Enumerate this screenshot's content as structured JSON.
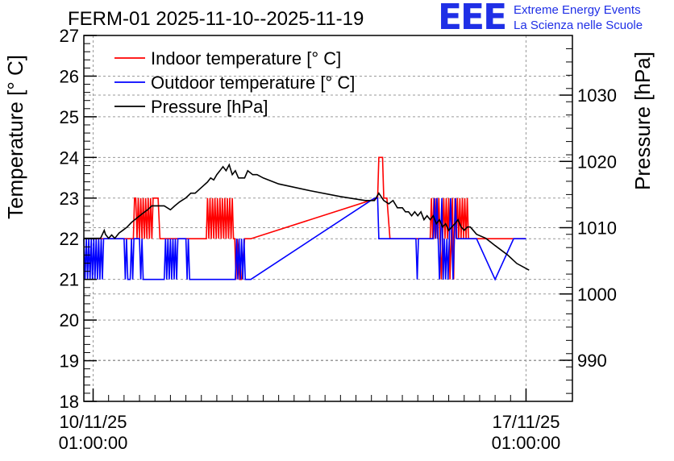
{
  "title": "FERM-01 2025-11-10--2025-11-19",
  "logo": {
    "mark": "EEE",
    "line1": "Extreme Energy Events",
    "line2": "La Scienza nelle Scuole",
    "color": "#1f2fe6"
  },
  "chart_data": {
    "type": "line",
    "title": "FERM-01 2025-11-10--2025-11-19",
    "xlabel": "",
    "ylabel": "Temperature [° C]",
    "y2label": "Pressure [hPa]",
    "xlim": [
      -0.15,
      7.75
    ],
    "ylim": [
      18,
      27
    ],
    "y2lim": [
      983.8,
      1039.0
    ],
    "y_ticks": [
      18,
      19,
      20,
      21,
      22,
      23,
      24,
      25,
      26,
      27
    ],
    "y2_ticks": [
      990,
      1000,
      1010,
      1020,
      1030
    ],
    "x_ticks": [
      {
        "value": 0,
        "line1": "10/11/25",
        "line2": "01:00:00"
      },
      {
        "value": 7,
        "line1": "17/11/25",
        "line2": "01:00:00"
      }
    ],
    "x_unit": "days since 10/11/25 01:00:00",
    "grid": true,
    "legend_position": "top-left",
    "series": [
      {
        "name": "Indoor temperature [° C]",
        "axis": "left",
        "color": "#ff0000",
        "x": [
          -0.15,
          0.65,
          0.67,
          0.69,
          0.71,
          0.73,
          0.75,
          0.77,
          0.79,
          0.81,
          0.83,
          0.85,
          0.87,
          0.89,
          0.91,
          0.93,
          0.95,
          0.97,
          0.99,
          1.02,
          1.05,
          1.08,
          1.15,
          1.5,
          1.83,
          1.85,
          1.87,
          1.89,
          1.91,
          1.93,
          1.95,
          1.97,
          1.99,
          2.01,
          2.03,
          2.05,
          2.07,
          2.09,
          2.11,
          2.13,
          2.15,
          2.17,
          2.19,
          2.21,
          2.23,
          2.25,
          2.27,
          2.29,
          2.31,
          2.33,
          2.37,
          2.4,
          2.45,
          2.55,
          4.6,
          4.62,
          4.64,
          4.66,
          4.68,
          4.7,
          4.75,
          4.8,
          5.45,
          5.47,
          5.49,
          5.51,
          5.53,
          5.55,
          5.57,
          5.59,
          5.61,
          5.63,
          5.65,
          5.67,
          5.69,
          5.71,
          5.73,
          5.75,
          5.77,
          5.79,
          5.81,
          5.83,
          5.85,
          5.87,
          5.89,
          5.91,
          5.93,
          5.95,
          5.97,
          5.99,
          6.01,
          6.03,
          6.05,
          6.07,
          7.0
        ],
        "y": [
          22,
          22,
          23,
          23,
          22,
          23,
          22,
          23,
          22,
          23,
          22,
          23,
          22,
          23,
          22,
          23,
          22,
          23,
          23,
          23,
          23,
          22,
          22,
          22,
          22,
          23,
          22,
          23,
          22,
          23,
          22,
          23,
          22,
          23,
          22,
          23,
          22,
          23,
          22,
          23,
          22,
          23,
          22,
          23,
          22,
          23,
          22,
          22,
          21,
          22,
          21,
          21,
          22,
          22,
          23,
          24,
          24,
          24,
          24,
          23,
          23,
          22,
          22,
          23,
          22,
          23,
          22,
          23,
          22,
          23,
          22,
          21,
          22,
          23,
          22,
          23,
          22,
          23,
          21,
          22,
          23,
          21,
          23,
          22,
          23,
          22,
          23,
          22,
          23,
          22,
          23,
          22,
          23,
          22,
          22
        ]
      },
      {
        "name": "Outdoor temperature [° C]",
        "axis": "left",
        "color": "#0000ff",
        "x": [
          -0.15,
          -0.13,
          -0.11,
          -0.09,
          -0.07,
          -0.05,
          -0.03,
          -0.01,
          0.01,
          0.03,
          0.05,
          0.07,
          0.09,
          0.11,
          0.13,
          0.15,
          0.17,
          0.19,
          0.21,
          0.4,
          0.5,
          0.52,
          0.54,
          0.56,
          0.6,
          0.62,
          0.64,
          0.66,
          0.68,
          0.75,
          0.77,
          0.79,
          0.81,
          0.83,
          1.15,
          1.17,
          1.19,
          1.21,
          1.23,
          1.25,
          1.27,
          1.29,
          1.31,
          1.33,
          1.35,
          1.37,
          1.4,
          1.42,
          1.44,
          1.46,
          1.48,
          1.5,
          1.52,
          1.54,
          1.56,
          1.58,
          2.3,
          2.32,
          2.34,
          2.36,
          2.38,
          2.4,
          2.42,
          2.44,
          2.46,
          2.5,
          2.55,
          4.55,
          4.6,
          4.62,
          4.64,
          5.2,
          5.22,
          5.24,
          5.26,
          5.28,
          5.5,
          5.52,
          5.54,
          5.56,
          5.58,
          5.6,
          5.62,
          5.64,
          5.66,
          5.68,
          5.7,
          5.72,
          5.74,
          5.76,
          5.78,
          5.8,
          5.82,
          5.84,
          5.86,
          5.88,
          5.9,
          6.2,
          6.5,
          6.8,
          7.0
        ],
        "y": [
          22,
          21,
          22,
          21,
          22,
          21,
          22,
          21,
          22,
          21,
          22,
          21,
          22,
          21,
          22,
          21,
          22,
          22,
          22,
          22,
          22,
          21,
          22,
          21,
          21,
          22,
          21,
          22,
          22,
          22,
          21,
          22,
          21,
          21,
          21,
          22,
          21,
          22,
          21,
          22,
          21,
          22,
          21,
          22,
          21,
          22,
          22,
          22,
          22,
          22,
          22,
          22,
          21,
          22,
          21,
          21,
          21,
          22,
          21,
          22,
          21,
          22,
          21,
          22,
          21,
          21,
          21,
          23,
          23,
          22,
          22,
          22,
          22,
          21,
          22,
          22,
          22,
          23,
          22,
          23,
          22,
          21,
          22,
          23,
          21,
          22,
          21,
          22,
          21,
          22,
          23,
          22,
          21,
          22,
          23,
          22,
          22,
          22,
          21,
          22,
          22
        ]
      },
      {
        "name": "Pressure [hPa]",
        "axis": "right",
        "color": "#000000",
        "x": [
          -0.15,
          0.12,
          0.18,
          0.2,
          0.25,
          0.3,
          0.35,
          0.42,
          0.48,
          0.55,
          0.62,
          0.7,
          0.78,
          0.88,
          0.95,
          1.05,
          1.15,
          1.25,
          1.32,
          1.4,
          1.5,
          1.58,
          1.65,
          1.72,
          1.78,
          1.85,
          1.9,
          1.95,
          2.0,
          2.05,
          2.1,
          2.15,
          2.2,
          2.25,
          2.3,
          2.35,
          2.4,
          2.45,
          2.5,
          2.58,
          2.65,
          2.75,
          3.0,
          3.5,
          4.0,
          4.4,
          4.55,
          4.62,
          4.7,
          4.78,
          4.85,
          4.92,
          5.0,
          5.05,
          5.1,
          5.15,
          5.2,
          5.25,
          5.3,
          5.35,
          5.4,
          5.45,
          5.5,
          5.55,
          5.6,
          5.65,
          5.7,
          5.75,
          5.8,
          5.85,
          5.9,
          5.95,
          6.0,
          6.05,
          6.1,
          6.2,
          6.35,
          6.5,
          6.7,
          6.85,
          7.05
        ],
        "y": [
          1008.4,
          1008.4,
          1009.6,
          1009.0,
          1008.4,
          1008.9,
          1008.4,
          1009.2,
          1009.6,
          1010.1,
          1010.8,
          1011.4,
          1012.0,
          1012.7,
          1013.3,
          1013.3,
          1013.3,
          1012.7,
          1013.3,
          1013.9,
          1014.5,
          1015.2,
          1015.2,
          1015.8,
          1016.3,
          1016.9,
          1017.5,
          1017.2,
          1018.0,
          1018.6,
          1019.2,
          1018.6,
          1019.5,
          1018.0,
          1018.6,
          1017.5,
          1017.5,
          1017.5,
          1018.6,
          1018.0,
          1018.0,
          1017.5,
          1016.6,
          1015.6,
          1014.7,
          1014.1,
          1014.1,
          1015.2,
          1014.1,
          1013.6,
          1014.1,
          1013.0,
          1013.0,
          1012.4,
          1012.4,
          1011.8,
          1012.4,
          1011.8,
          1012.4,
          1011.2,
          1011.8,
          1011.2,
          1011.8,
          1010.6,
          1011.2,
          1010.1,
          1010.6,
          1009.6,
          1010.1,
          1010.6,
          1011.2,
          1010.1,
          1009.6,
          1010.1,
          1010.1,
          1009.0,
          1008.4,
          1007.3,
          1005.9,
          1004.6,
          1003.6
        ]
      }
    ]
  }
}
